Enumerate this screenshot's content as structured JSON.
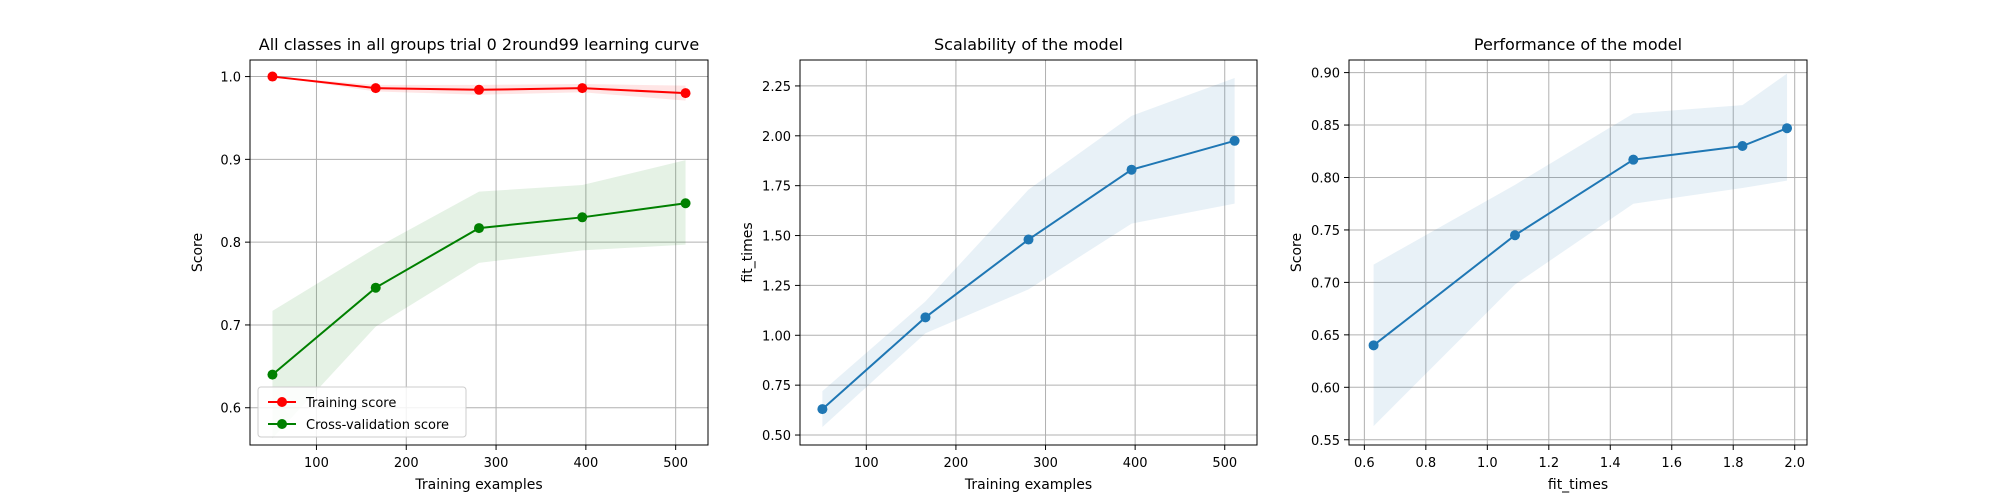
{
  "chart_data": [
    {
      "type": "line",
      "title": "All classes in all groups trial 0 2round99 learning curve",
      "xlabel": "Training examples",
      "ylabel": "Score",
      "xlim": [
        26,
        536
      ],
      "ylim": [
        0.555,
        1.02
      ],
      "xticks": [
        100,
        200,
        300,
        400,
        500
      ],
      "yticks": [
        0.6,
        0.7,
        0.8,
        0.9,
        1.0
      ],
      "ytick_labels": [
        "0.6",
        "0.7",
        "0.8",
        "0.9",
        "1.0"
      ],
      "grid": true,
      "legend": "lower-left",
      "x": [
        51,
        166,
        281,
        396,
        511
      ],
      "series": [
        {
          "name": "Training score",
          "color": "#ff0000",
          "values": [
            1.0,
            0.986,
            0.984,
            0.986,
            0.98
          ],
          "band_low": [
            1.0,
            0.982,
            0.978,
            0.981,
            0.971
          ],
          "band_high": [
            1.0,
            0.99,
            0.99,
            0.991,
            0.989
          ]
        },
        {
          "name": "Cross-validation score",
          "color": "#008000",
          "values": [
            0.64,
            0.745,
            0.817,
            0.83,
            0.847
          ],
          "band_low": [
            0.563,
            0.698,
            0.775,
            0.79,
            0.797
          ],
          "band_high": [
            0.717,
            0.793,
            0.861,
            0.869,
            0.899
          ]
        }
      ]
    },
    {
      "type": "line",
      "title": "Scalability of the model",
      "xlabel": "Training examples",
      "ylabel": "fit_times",
      "xlim": [
        26,
        536
      ],
      "ylim": [
        0.45,
        2.38
      ],
      "xticks": [
        100,
        200,
        300,
        400,
        500
      ],
      "yticks": [
        0.5,
        0.75,
        1.0,
        1.25,
        1.5,
        1.75,
        2.0,
        2.25
      ],
      "ytick_labels": [
        "0.50",
        "0.75",
        "1.00",
        "1.25",
        "1.50",
        "1.75",
        "2.00",
        "2.25"
      ],
      "grid": true,
      "x": [
        51,
        166,
        281,
        396,
        511
      ],
      "series": [
        {
          "color": "#1f77b4",
          "values": [
            0.63,
            1.09,
            1.48,
            1.83,
            1.975
          ],
          "band_low": [
            0.54,
            1.01,
            1.23,
            1.56,
            1.66
          ],
          "band_high": [
            0.72,
            1.17,
            1.73,
            2.1,
            2.29
          ]
        }
      ]
    },
    {
      "type": "line",
      "title": "Performance of the model",
      "xlabel": "fit_times",
      "ylabel": "Score",
      "xlim": [
        0.55,
        2.04
      ],
      "ylim": [
        0.545,
        0.912
      ],
      "xticks": [
        0.6,
        0.8,
        1.0,
        1.2,
        1.4,
        1.6,
        1.8,
        2.0
      ],
      "xtick_labels": [
        "0.6",
        "0.8",
        "1.0",
        "1.2",
        "1.4",
        "1.6",
        "1.8",
        "2.0"
      ],
      "yticks": [
        0.55,
        0.6,
        0.65,
        0.7,
        0.75,
        0.8,
        0.85,
        0.9
      ],
      "ytick_labels": [
        "0.55",
        "0.60",
        "0.65",
        "0.70",
        "0.75",
        "0.80",
        "0.85",
        "0.90"
      ],
      "grid": true,
      "x": [
        0.63,
        1.09,
        1.475,
        1.83,
        1.975
      ],
      "series": [
        {
          "color": "#1f77b4",
          "values": [
            0.64,
            0.745,
            0.817,
            0.83,
            0.847
          ],
          "band_low": [
            0.563,
            0.698,
            0.775,
            0.79,
            0.797
          ],
          "band_high": [
            0.717,
            0.793,
            0.861,
            0.869,
            0.899
          ]
        }
      ]
    }
  ]
}
